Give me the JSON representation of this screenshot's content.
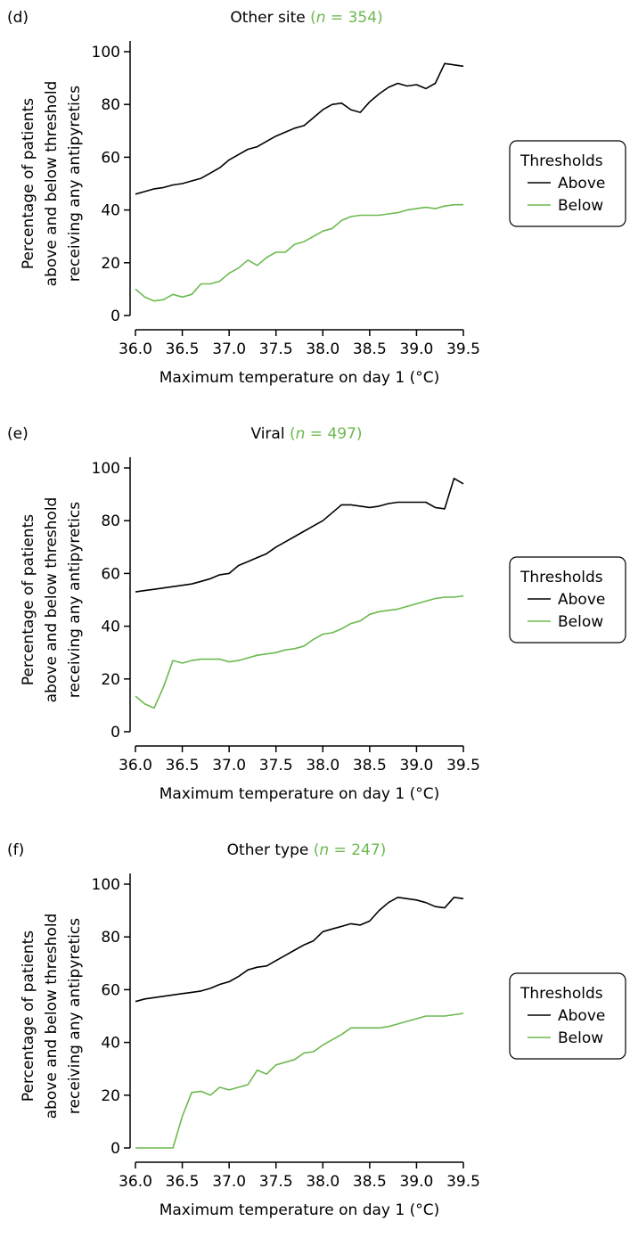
{
  "colors": {
    "above": "#000000",
    "below": "#6cb94f",
    "axis": "#000000"
  },
  "legend": {
    "title": "Thresholds",
    "placement": "right"
  },
  "chart_data": [
    {
      "type": "line",
      "panel_label": "(d)",
      "title_main": "Other site",
      "title_n": "(n = 354)",
      "title_n_prefix": "(",
      "title_n_var": "n",
      "title_n_eq": " = ",
      "title_n_value": "354",
      "title_n_suffix": ")",
      "xlabel": "Maximum temperature on day 1 (°C)",
      "ylabel_lines": [
        "Percentage of patients",
        "above and below threshold",
        "receiving any antipyretics"
      ],
      "xlim": [
        36.0,
        39.5
      ],
      "ylim": [
        0,
        100
      ],
      "xticks": [
        "36.0",
        "36.5",
        "37.0",
        "37.5",
        "38.0",
        "38.5",
        "39.0",
        "39.5"
      ],
      "yticks": [
        "0",
        "20",
        "40",
        "60",
        "80",
        "100"
      ],
      "grid": false,
      "legend_entries": [
        "Above",
        "Below"
      ],
      "series": [
        {
          "name": "Above",
          "color_key": "above",
          "x": [
            36.0,
            36.1,
            36.2,
            36.3,
            36.4,
            36.5,
            36.6,
            36.7,
            36.8,
            36.9,
            37.0,
            37.1,
            37.2,
            37.3,
            37.4,
            37.5,
            37.6,
            37.7,
            37.8,
            37.9,
            38.0,
            38.1,
            38.2,
            38.3,
            38.4,
            38.5,
            38.6,
            38.7,
            38.8,
            38.9,
            39.0,
            39.1,
            39.2,
            39.3,
            39.4,
            39.5
          ],
          "y": [
            46,
            47,
            48,
            48.5,
            49.5,
            50,
            51,
            52,
            54,
            56,
            59,
            61,
            63,
            64,
            66,
            68,
            69.5,
            71,
            72,
            75,
            78,
            80,
            80.5,
            78,
            77,
            81,
            84,
            86.5,
            88,
            87,
            87.5,
            86,
            88,
            95.5,
            95,
            94.5
          ]
        },
        {
          "name": "Below",
          "color_key": "below",
          "x": [
            36.0,
            36.1,
            36.2,
            36.3,
            36.4,
            36.5,
            36.6,
            36.7,
            36.8,
            36.9,
            37.0,
            37.1,
            37.2,
            37.3,
            37.4,
            37.5,
            37.6,
            37.7,
            37.8,
            37.9,
            38.0,
            38.1,
            38.2,
            38.3,
            38.4,
            38.5,
            38.6,
            38.7,
            38.8,
            38.9,
            39.0,
            39.1,
            39.2,
            39.3,
            39.4,
            39.5
          ],
          "y": [
            10,
            7,
            5.5,
            6,
            8,
            7,
            8,
            12,
            12,
            13,
            16,
            18,
            21,
            19,
            22,
            24,
            24,
            27,
            28,
            30,
            32,
            33,
            36,
            37.5,
            38,
            38,
            38,
            38.5,
            39,
            40,
            40.5,
            41,
            40.5,
            41.5,
            42,
            42
          ]
        }
      ]
    },
    {
      "type": "line",
      "panel_label": "(e)",
      "title_main": "Viral",
      "title_n": "(n = 497)",
      "title_n_prefix": "(",
      "title_n_var": "n",
      "title_n_eq": " = ",
      "title_n_value": "497",
      "title_n_suffix": ")",
      "xlabel": "Maximum temperature on day 1 (°C)",
      "ylabel_lines": [
        "Percentage of patients",
        "above and below threshold",
        "receiving any antipyretics"
      ],
      "xlim": [
        36.0,
        39.5
      ],
      "ylim": [
        0,
        100
      ],
      "xticks": [
        "36.0",
        "36.5",
        "37.0",
        "37.5",
        "38.0",
        "38.5",
        "39.0",
        "39.5"
      ],
      "yticks": [
        "0",
        "20",
        "40",
        "60",
        "80",
        "100"
      ],
      "grid": false,
      "legend_entries": [
        "Above",
        "Below"
      ],
      "series": [
        {
          "name": "Above",
          "color_key": "above",
          "x": [
            36.0,
            36.1,
            36.2,
            36.3,
            36.4,
            36.5,
            36.6,
            36.7,
            36.8,
            36.9,
            37.0,
            37.1,
            37.2,
            37.3,
            37.4,
            37.5,
            37.6,
            37.7,
            37.8,
            37.9,
            38.0,
            38.1,
            38.2,
            38.3,
            38.4,
            38.5,
            38.6,
            38.7,
            38.8,
            38.9,
            39.0,
            39.1,
            39.2,
            39.3,
            39.4,
            39.5
          ],
          "y": [
            53,
            53.5,
            54,
            54.5,
            55,
            55.5,
            56,
            57,
            58,
            59.5,
            60,
            63,
            64.5,
            66,
            67.5,
            70,
            72,
            74,
            76,
            78,
            80,
            83,
            86,
            86,
            85.5,
            85,
            85.5,
            86.5,
            87,
            87,
            87,
            87,
            85,
            84.5,
            96,
            94
          ]
        },
        {
          "name": "Below",
          "color_key": "below",
          "x": [
            36.0,
            36.1,
            36.2,
            36.3,
            36.4,
            36.5,
            36.6,
            36.7,
            36.8,
            36.9,
            37.0,
            37.1,
            37.2,
            37.3,
            37.4,
            37.5,
            37.6,
            37.7,
            37.8,
            37.9,
            38.0,
            38.1,
            38.2,
            38.3,
            38.4,
            38.5,
            38.6,
            38.7,
            38.8,
            38.9,
            39.0,
            39.1,
            39.2,
            39.3,
            39.4,
            39.5
          ],
          "y": [
            13.5,
            10.5,
            9,
            17,
            27,
            26,
            27,
            27.5,
            27.5,
            27.5,
            26.5,
            27,
            28,
            29,
            29.5,
            30,
            31,
            31.5,
            32.5,
            35,
            37,
            37.5,
            39,
            41,
            42,
            44.5,
            45.5,
            46,
            46.5,
            47.5,
            48.5,
            49.5,
            50.5,
            51,
            51,
            51.5
          ]
        }
      ]
    },
    {
      "type": "line",
      "panel_label": "(f)",
      "title_main": "Other type",
      "title_n": "(n = 247)",
      "title_n_prefix": "(",
      "title_n_var": "n",
      "title_n_eq": " = ",
      "title_n_value": "247",
      "title_n_suffix": ")",
      "xlabel": "Maximum temperature on day 1 (°C)",
      "ylabel_lines": [
        "Percentage of patients",
        "above and below threshold",
        "receiving any antipyretics"
      ],
      "xlim": [
        36.0,
        39.5
      ],
      "ylim": [
        0,
        100
      ],
      "xticks": [
        "36.0",
        "36.5",
        "37.0",
        "37.5",
        "38.0",
        "38.5",
        "39.0",
        "39.5"
      ],
      "yticks": [
        "0",
        "20",
        "40",
        "60",
        "80",
        "100"
      ],
      "grid": false,
      "legend_entries": [
        "Above",
        "Below"
      ],
      "series": [
        {
          "name": "Above",
          "color_key": "above",
          "x": [
            36.0,
            36.1,
            36.2,
            36.3,
            36.4,
            36.5,
            36.6,
            36.7,
            36.8,
            36.9,
            37.0,
            37.1,
            37.2,
            37.3,
            37.4,
            37.5,
            37.6,
            37.7,
            37.8,
            37.9,
            38.0,
            38.1,
            38.2,
            38.3,
            38.4,
            38.5,
            38.6,
            38.7,
            38.8,
            38.9,
            39.0,
            39.1,
            39.2,
            39.3,
            39.4,
            39.5
          ],
          "y": [
            55.5,
            56.5,
            57,
            57.5,
            58,
            58.5,
            59,
            59.5,
            60.5,
            62,
            63,
            65,
            67.5,
            68.5,
            69,
            71,
            73,
            75,
            77,
            78.5,
            82,
            83,
            84,
            85,
            84.5,
            86,
            90,
            93,
            95,
            94.5,
            94,
            93,
            91.5,
            91,
            95,
            94.5
          ]
        },
        {
          "name": "Below",
          "color_key": "below",
          "x": [
            36.0,
            36.1,
            36.2,
            36.3,
            36.4,
            36.5,
            36.6,
            36.7,
            36.8,
            36.9,
            37.0,
            37.1,
            37.2,
            37.3,
            37.4,
            37.5,
            37.6,
            37.7,
            37.8,
            37.9,
            38.0,
            38.1,
            38.2,
            38.3,
            38.4,
            38.5,
            38.6,
            38.7,
            38.8,
            38.9,
            39.0,
            39.1,
            39.2,
            39.3,
            39.4,
            39.5
          ],
          "y": [
            0,
            0,
            0,
            0,
            0,
            12,
            21,
            21.5,
            20,
            23,
            22,
            23,
            24,
            29.5,
            28,
            31.5,
            32.5,
            33.5,
            36,
            36.5,
            39,
            41,
            43,
            45.5,
            45.5,
            45.5,
            45.5,
            46,
            47,
            48,
            49,
            50,
            50,
            50,
            50.5,
            51
          ]
        }
      ]
    }
  ]
}
